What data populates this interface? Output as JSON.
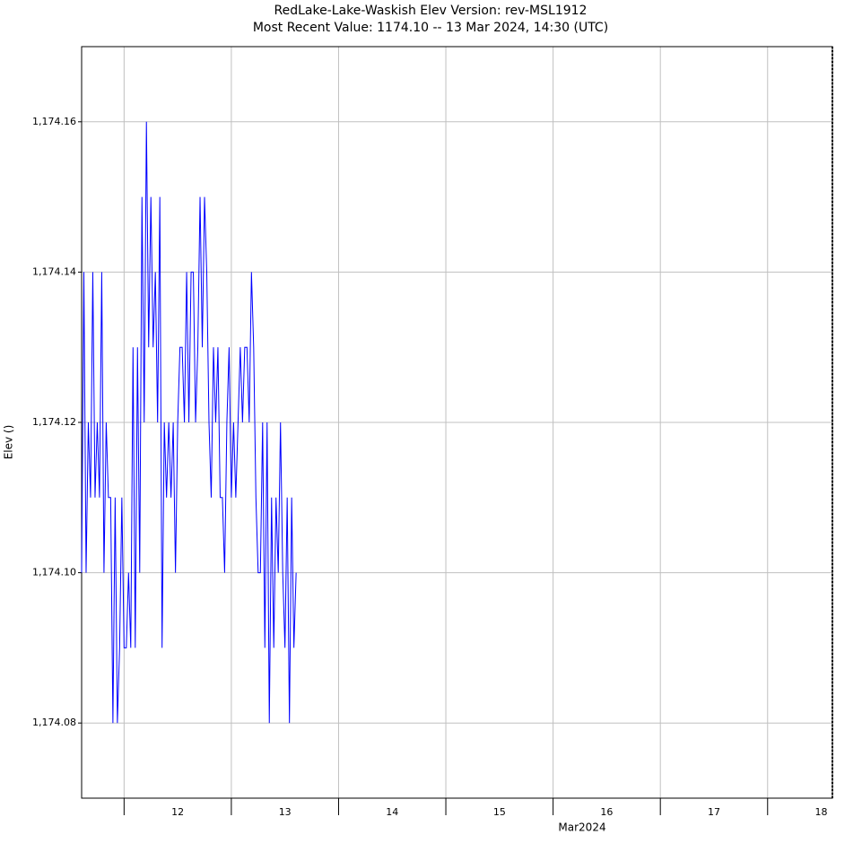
{
  "chart_data": {
    "type": "line",
    "title": "RedLake-Lake-Waskish  Elev  Version: rev-MSL1912",
    "subtitle": "Most Recent Value: 1174.10  --  13 Mar 2024, 14:30 (UTC)",
    "ylabel": "Elev ()",
    "xlabel": "Mar2024",
    "xlim": [
      "2024-03-11T14:30",
      "2024-03-18T14:30"
    ],
    "xticks": [
      {
        "value": "2024-03-12",
        "label": "12"
      },
      {
        "value": "2024-03-13",
        "label": "13"
      },
      {
        "value": "2024-03-14",
        "label": "14"
      },
      {
        "value": "2024-03-15",
        "label": "15"
      },
      {
        "value": "2024-03-16",
        "label": "16"
      },
      {
        "value": "2024-03-17",
        "label": "17"
      },
      {
        "value": "2024-03-18",
        "label": "18"
      }
    ],
    "ylim": [
      1174.07,
      1174.17
    ],
    "yticks": [
      {
        "value": 1174.08,
        "label": "1,174.08"
      },
      {
        "value": 1174.1,
        "label": "1,174.10"
      },
      {
        "value": 1174.12,
        "label": "1,174.12"
      },
      {
        "value": 1174.14,
        "label": "1,174.14"
      },
      {
        "value": 1174.16,
        "label": "1,174.16"
      }
    ],
    "grid": true,
    "x": [
      "2024-03-11T14:30",
      "2024-03-11T15:00",
      "2024-03-11T15:30",
      "2024-03-11T16:00",
      "2024-03-11T16:30",
      "2024-03-11T17:00",
      "2024-03-11T17:30",
      "2024-03-11T18:00",
      "2024-03-11T18:30",
      "2024-03-11T19:00",
      "2024-03-11T19:30",
      "2024-03-11T20:00",
      "2024-03-11T20:30",
      "2024-03-11T21:00",
      "2024-03-11T21:30",
      "2024-03-11T22:00",
      "2024-03-11T22:30",
      "2024-03-11T23:00",
      "2024-03-11T23:30",
      "2024-03-12T00:00",
      "2024-03-12T00:30",
      "2024-03-12T01:00",
      "2024-03-12T01:30",
      "2024-03-12T02:00",
      "2024-03-12T02:30",
      "2024-03-12T03:00",
      "2024-03-12T03:30",
      "2024-03-12T04:00",
      "2024-03-12T04:30",
      "2024-03-12T05:00",
      "2024-03-12T05:30",
      "2024-03-12T06:00",
      "2024-03-12T06:30",
      "2024-03-12T07:00",
      "2024-03-12T07:30",
      "2024-03-12T08:00",
      "2024-03-12T08:30",
      "2024-03-12T09:00",
      "2024-03-12T09:30",
      "2024-03-12T10:00",
      "2024-03-12T10:30",
      "2024-03-12T11:00",
      "2024-03-12T11:30",
      "2024-03-12T12:00",
      "2024-03-12T12:30",
      "2024-03-12T13:00",
      "2024-03-12T13:30",
      "2024-03-12T14:00",
      "2024-03-12T14:30",
      "2024-03-12T15:00",
      "2024-03-12T15:30",
      "2024-03-12T16:00",
      "2024-03-12T16:30",
      "2024-03-12T17:00",
      "2024-03-12T17:30",
      "2024-03-12T18:00",
      "2024-03-12T18:30",
      "2024-03-12T19:00",
      "2024-03-12T19:30",
      "2024-03-12T20:00",
      "2024-03-12T20:30",
      "2024-03-12T21:00",
      "2024-03-12T21:30",
      "2024-03-12T22:00",
      "2024-03-12T22:30",
      "2024-03-12T23:00",
      "2024-03-12T23:30",
      "2024-03-13T00:00",
      "2024-03-13T00:30",
      "2024-03-13T01:00",
      "2024-03-13T01:30",
      "2024-03-13T02:00",
      "2024-03-13T02:30",
      "2024-03-13T03:00",
      "2024-03-13T03:30",
      "2024-03-13T04:00",
      "2024-03-13T04:30",
      "2024-03-13T05:00",
      "2024-03-13T05:30",
      "2024-03-13T06:00",
      "2024-03-13T06:30",
      "2024-03-13T07:00",
      "2024-03-13T07:30",
      "2024-03-13T08:00",
      "2024-03-13T08:30",
      "2024-03-13T09:00",
      "2024-03-13T09:30",
      "2024-03-13T10:00",
      "2024-03-13T10:30",
      "2024-03-13T11:00",
      "2024-03-13T11:30",
      "2024-03-13T12:00",
      "2024-03-13T12:30",
      "2024-03-13T13:00",
      "2024-03-13T13:30",
      "2024-03-13T14:00",
      "2024-03-13T14:30"
    ],
    "series": [
      {
        "name": "Elev",
        "color": "#0000ff",
        "values": [
          1174.1,
          1174.14,
          1174.1,
          1174.12,
          1174.11,
          1174.14,
          1174.11,
          1174.12,
          1174.11,
          1174.14,
          1174.1,
          1174.12,
          1174.11,
          1174.11,
          1174.08,
          1174.11,
          1174.08,
          1174.09,
          1174.11,
          1174.09,
          1174.09,
          1174.1,
          1174.09,
          1174.13,
          1174.09,
          1174.13,
          1174.1,
          1174.15,
          1174.12,
          1174.16,
          1174.13,
          1174.15,
          1174.13,
          1174.14,
          1174.12,
          1174.15,
          1174.09,
          1174.12,
          1174.11,
          1174.12,
          1174.11,
          1174.12,
          1174.1,
          1174.12,
          1174.13,
          1174.13,
          1174.12,
          1174.14,
          1174.12,
          1174.14,
          1174.14,
          1174.12,
          1174.13,
          1174.15,
          1174.13,
          1174.15,
          1174.14,
          1174.12,
          1174.11,
          1174.13,
          1174.12,
          1174.13,
          1174.11,
          1174.11,
          1174.1,
          1174.12,
          1174.13,
          1174.11,
          1174.12,
          1174.11,
          1174.12,
          1174.13,
          1174.12,
          1174.13,
          1174.13,
          1174.12,
          1174.14,
          1174.13,
          1174.11,
          1174.1,
          1174.1,
          1174.12,
          1174.09,
          1174.12,
          1174.08,
          1174.11,
          1174.09,
          1174.11,
          1174.1,
          1174.12,
          1174.1,
          1174.09,
          1174.11,
          1174.08,
          1174.11,
          1174.09,
          1174.1
        ]
      }
    ]
  }
}
